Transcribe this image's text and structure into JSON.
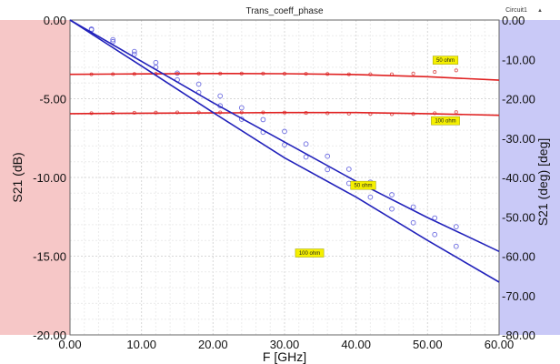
{
  "chart_data": {
    "type": "line",
    "title": "Trans_coeff_phase",
    "legend_tag": "Circuit1",
    "xlabel": "F [GHz]",
    "ylabel": "S21 (dB)",
    "y2label": "S21 (deg) [deg]",
    "xlim": [
      0,
      60
    ],
    "ylim": [
      -20,
      0
    ],
    "y2lim": [
      -80,
      0
    ],
    "x_ticks": [
      "0.00",
      "10.00",
      "20.00",
      "30.00",
      "40.00",
      "50.00",
      "60.00"
    ],
    "y_ticks": [
      "0.00",
      "-5.00",
      "-10.00",
      "-15.00",
      "-20.00"
    ],
    "y2_ticks": [
      "0.00",
      "-10.00",
      "-20.00",
      "-30.00",
      "-40.00",
      "-50.00",
      "-60.00",
      "-70.00",
      "-80.00"
    ],
    "grid": true,
    "left_band_color": "#f6c7c7",
    "right_band_color": "#c9c9f7",
    "series": [
      {
        "axis": "left",
        "color": "#e02020",
        "x": [
          0,
          10,
          20,
          30,
          40,
          50,
          60
        ],
        "y": [
          -3.45,
          -3.42,
          -3.4,
          -3.41,
          -3.46,
          -3.6,
          -3.82
        ]
      },
      {
        "axis": "left",
        "color": "#e02020",
        "x": [
          0,
          10,
          20,
          30,
          40,
          50,
          60
        ],
        "y": [
          -5.95,
          -5.92,
          -5.9,
          -5.88,
          -5.88,
          -5.95,
          -6.05
        ]
      },
      {
        "axis": "right",
        "color": "#2222bb",
        "x": [
          0,
          10,
          20,
          30,
          40,
          50,
          60
        ],
        "y": [
          0,
          -10.5,
          -21.0,
          -31.0,
          -41.0,
          -50.2,
          -58.8
        ]
      },
      {
        "axis": "right",
        "color": "#2222bb",
        "x": [
          0,
          10,
          20,
          30,
          40,
          50,
          60
        ],
        "y": [
          0,
          -11.7,
          -23.5,
          -35.0,
          -45.0,
          -56.0,
          -66.6
        ]
      }
    ],
    "markers": [
      {
        "axis": "left",
        "color": "#e06060",
        "x": [
          3,
          6,
          9,
          12,
          15,
          18,
          21,
          24,
          27,
          30,
          33,
          36,
          39,
          42,
          45,
          48,
          51,
          54
        ],
        "y": [
          -3.45,
          -3.44,
          -3.43,
          -3.42,
          -3.41,
          -3.4,
          -3.4,
          -3.4,
          -3.4,
          -3.41,
          -3.42,
          -3.43,
          -3.45,
          -3.45,
          -3.45,
          -3.4,
          -3.3,
          -3.2
        ]
      },
      {
        "axis": "left",
        "color": "#e06060",
        "x": [
          3,
          6,
          9,
          12,
          15,
          18,
          21,
          24,
          27,
          30,
          33,
          36,
          39,
          42,
          45,
          48,
          51,
          54
        ],
        "y": [
          -5.92,
          -5.9,
          -5.89,
          -5.88,
          -5.87,
          -5.87,
          -5.87,
          -5.87,
          -5.87,
          -5.88,
          -5.9,
          -5.92,
          -5.95,
          -5.97,
          -5.98,
          -5.97,
          -5.92,
          -5.85
        ]
      },
      {
        "axis": "right",
        "color": "#6a6ae0",
        "x": [
          3,
          6,
          9,
          12,
          15,
          18,
          21,
          24,
          27,
          30,
          33,
          36,
          39,
          42,
          45,
          48,
          51,
          54
        ],
        "y": [
          -2.3,
          -5.0,
          -8.0,
          -10.8,
          -13.5,
          -16.3,
          -19.3,
          -22.3,
          -25.3,
          -28.3,
          -31.5,
          -34.6,
          -37.9,
          -41.2,
          -44.4,
          -47.5,
          -50.3,
          -52.5
        ]
      },
      {
        "axis": "right",
        "color": "#6a6ae0",
        "x": [
          3,
          6,
          9,
          12,
          15,
          18,
          21,
          24,
          27,
          30,
          33,
          36,
          39,
          42,
          45,
          48,
          51,
          54
        ],
        "y": [
          -2.5,
          -5.5,
          -8.7,
          -12.0,
          -15.2,
          -18.4,
          -21.8,
          -25.2,
          -28.5,
          -31.7,
          -34.8,
          -38.0,
          -41.5,
          -45.0,
          -48.0,
          -51.5,
          -54.5,
          -57.5
        ]
      }
    ],
    "annotations": [
      {
        "text": "50 ohm",
        "axis": "left",
        "x": 52.5,
        "y": -2.55
      },
      {
        "text": "100 ohm",
        "axis": "left",
        "x": 52.5,
        "y": -6.4
      },
      {
        "text": "50 ohm",
        "axis": "left",
        "x": 41.0,
        "y": -10.5
      },
      {
        "text": "100 ohm",
        "axis": "left",
        "x": 33.5,
        "y": -14.8
      }
    ]
  }
}
